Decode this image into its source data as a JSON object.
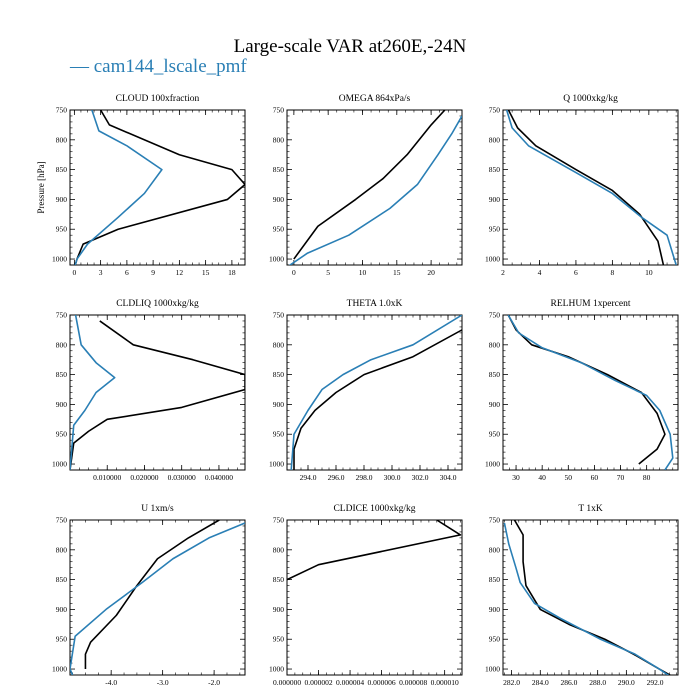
{
  "figure": {
    "title": "Large-scale VAR at260E,-24N",
    "legend_label": "cam144_lscale_pmf",
    "legend_prefix": "— "
  },
  "colors": {
    "series_a": "#000000",
    "series_b": "#2a7fb5"
  },
  "chart_data": [
    {
      "type": "line",
      "title": "CLOUD 100xfraction",
      "ylabel": "Pressure [hPa]",
      "xlim": [
        -0.5,
        19.5
      ],
      "xticks": [
        0,
        3,
        6,
        9,
        12,
        15,
        18
      ],
      "xtick_labels": [
        "0",
        "3",
        "6",
        "9",
        "12",
        "15",
        "18"
      ],
      "ylim": [
        1010,
        750
      ],
      "series": [
        {
          "color": "series_a",
          "points": [
            [
              3,
              750
            ],
            [
              4,
              775
            ],
            [
              12,
              825
            ],
            [
              18,
              850
            ],
            [
              19.5,
              875
            ],
            [
              17.5,
              900
            ],
            [
              5,
              950
            ],
            [
              1,
              975
            ],
            [
              0.3,
              1000
            ],
            [
              0,
              1015
            ]
          ]
        },
        {
          "color": "series_b",
          "points": [
            [
              2,
              750
            ],
            [
              2.8,
              785
            ],
            [
              6,
              810
            ],
            [
              10,
              850
            ],
            [
              8,
              890
            ],
            [
              5,
              930
            ],
            [
              1.5,
              975
            ],
            [
              0.3,
              1000
            ],
            [
              0,
              1015
            ]
          ]
        }
      ]
    },
    {
      "type": "line",
      "title": "OMEGA 864xPa/s",
      "ylabel": "",
      "xlim": [
        -1,
        24.5
      ],
      "xticks": [
        0,
        5,
        10,
        15,
        20
      ],
      "xtick_labels": [
        "0",
        "5",
        "10",
        "15",
        "20"
      ],
      "ylim": [
        1010,
        750
      ],
      "series": [
        {
          "color": "series_a",
          "points": [
            [
              22,
              750
            ],
            [
              20,
              775
            ],
            [
              16.5,
              825
            ],
            [
              13,
              865
            ],
            [
              9,
              900
            ],
            [
              3.5,
              945
            ],
            [
              0,
              1000
            ]
          ]
        },
        {
          "color": "series_b",
          "points": [
            [
              24.5,
              760
            ],
            [
              23,
              790
            ],
            [
              21,
              825
            ],
            [
              18,
              875
            ],
            [
              14,
              915
            ],
            [
              8,
              960
            ],
            [
              2,
              990
            ],
            [
              -0.8,
              1012
            ]
          ]
        }
      ]
    },
    {
      "type": "line",
      "title": "Q 1000xkg/kg",
      "ylabel": "",
      "xlim": [
        2,
        11.6
      ],
      "xticks": [
        2,
        4,
        6,
        8,
        10
      ],
      "xtick_labels": [
        "2",
        "4",
        "6",
        "8",
        "10"
      ],
      "ylim": [
        1010,
        750
      ],
      "series": [
        {
          "color": "series_a",
          "points": [
            [
              2.3,
              750
            ],
            [
              2.8,
              780
            ],
            [
              3.8,
              810
            ],
            [
              6,
              850
            ],
            [
              8,
              885
            ],
            [
              9.5,
              925
            ],
            [
              10.5,
              970
            ],
            [
              10.8,
              1010
            ]
          ]
        },
        {
          "color": "series_b",
          "points": [
            [
              2.2,
              750
            ],
            [
              2.5,
              780
            ],
            [
              3.4,
              810
            ],
            [
              6,
              855
            ],
            [
              8,
              890
            ],
            [
              9.6,
              930
            ],
            [
              11,
              960
            ],
            [
              11.5,
              1010
            ]
          ]
        }
      ]
    },
    {
      "type": "line",
      "title": "CLDLIQ 1000xkg/kg",
      "ylabel": "",
      "xlim": [
        0,
        0.047
      ],
      "xticks": [
        0.01,
        0.02,
        0.03,
        0.04
      ],
      "xtick_labels": [
        "0.010000",
        "0.020000",
        "0.030000",
        "0.040000"
      ],
      "ylim": [
        1010,
        750
      ],
      "series": [
        {
          "color": "series_a",
          "points": [
            [
              0.008,
              760
            ],
            [
              0.017,
              800
            ],
            [
              0.033,
              825
            ],
            [
              0.047,
              850
            ],
            [
              0.047,
              875
            ],
            [
              0.03,
              905
            ],
            [
              0.01,
              925
            ],
            [
              0.005,
              945
            ],
            [
              0.001,
              965
            ],
            [
              0,
              1010
            ]
          ]
        },
        {
          "color": "series_b",
          "points": [
            [
              0.0015,
              750
            ],
            [
              0.003,
              800
            ],
            [
              0.007,
              830
            ],
            [
              0.012,
              855
            ],
            [
              0.007,
              880
            ],
            [
              0.004,
              910
            ],
            [
              0.001,
              935
            ],
            [
              0,
              1010
            ]
          ]
        }
      ]
    },
    {
      "type": "line",
      "title": "THETA 1.0xK",
      "ylabel": "",
      "xlim": [
        292.5,
        305
      ],
      "xticks": [
        294,
        296,
        298,
        300,
        302,
        304
      ],
      "xtick_labels": [
        "294.0",
        "296.0",
        "298.0",
        "300.0",
        "302.0",
        "304.0"
      ],
      "ylim": [
        1010,
        750
      ],
      "series": [
        {
          "color": "series_a",
          "points": [
            [
              305,
              775
            ],
            [
              301.5,
              820
            ],
            [
              298,
              850
            ],
            [
              296,
              880
            ],
            [
              294.5,
              910
            ],
            [
              293.5,
              940
            ],
            [
              293,
              975
            ],
            [
              293,
              1010
            ]
          ]
        },
        {
          "color": "series_b",
          "points": [
            [
              305,
              750
            ],
            [
              301.5,
              800
            ],
            [
              298.5,
              825
            ],
            [
              296.5,
              850
            ],
            [
              295,
              875
            ],
            [
              294,
              910
            ],
            [
              293,
              950
            ],
            [
              292.8,
              1010
            ]
          ]
        }
      ]
    },
    {
      "type": "line",
      "title": "RELHUM 1xpercent",
      "ylabel": "",
      "xlim": [
        25,
        92
      ],
      "xticks": [
        30,
        40,
        50,
        60,
        70,
        80
      ],
      "xtick_labels": [
        "30",
        "40",
        "50",
        "60",
        "70",
        "80"
      ],
      "ylim": [
        1010,
        750
      ],
      "series": [
        {
          "color": "series_a",
          "points": [
            [
              27,
              750
            ],
            [
              30,
              775
            ],
            [
              36,
              800
            ],
            [
              50,
              820
            ],
            [
              65,
              850
            ],
            [
              78,
              880
            ],
            [
              84,
              915
            ],
            [
              87,
              950
            ],
            [
              84,
              975
            ],
            [
              77,
              1000
            ]
          ]
        },
        {
          "color": "series_b",
          "points": [
            [
              27,
              750
            ],
            [
              31,
              780
            ],
            [
              40,
              805
            ],
            [
              55,
              830
            ],
            [
              68,
              860
            ],
            [
              80,
              885
            ],
            [
              85,
              910
            ],
            [
              89,
              950
            ],
            [
              90,
              990
            ],
            [
              87,
              1010
            ]
          ]
        }
      ]
    },
    {
      "type": "line",
      "title": "U 1xm/s",
      "ylabel": "",
      "xlim": [
        -4.8,
        -1.4
      ],
      "xticks": [
        -4,
        -3,
        -2
      ],
      "xtick_labels": [
        "-4.0",
        "-3.0",
        "-2.0"
      ],
      "ylim": [
        1010,
        750
      ],
      "series": [
        {
          "color": "series_a",
          "points": [
            [
              -1.9,
              750
            ],
            [
              -2.5,
              780
            ],
            [
              -3.1,
              815
            ],
            [
              -3.5,
              860
            ],
            [
              -3.9,
              910
            ],
            [
              -4.4,
              955
            ],
            [
              -4.5,
              975
            ],
            [
              -4.5,
              1000
            ]
          ]
        },
        {
          "color": "series_b",
          "points": [
            [
              -1.4,
              755
            ],
            [
              -2.1,
              780
            ],
            [
              -2.8,
              815
            ],
            [
              -3.4,
              855
            ],
            [
              -4.1,
              900
            ],
            [
              -4.7,
              945
            ],
            [
              -4.8,
              1000
            ],
            [
              -4.75,
              1010
            ]
          ]
        }
      ]
    },
    {
      "type": "line",
      "title": "CLDICE 1000xkg/kg",
      "ylabel": "",
      "xlim": [
        0,
        1.11e-05
      ],
      "xticks": [
        0,
        2e-06,
        4e-06,
        6e-06,
        8e-06,
        1e-05
      ],
      "xtick_labels": [
        "0.000000",
        "0.000002",
        "0.000004",
        "0.000006",
        "0.000008",
        "0.000010"
      ],
      "ylim": [
        1010,
        750
      ],
      "series": [
        {
          "color": "series_a",
          "points": [
            [
              9.5e-06,
              750
            ],
            [
              1.1e-05,
              775
            ],
            [
              2e-06,
              825
            ],
            [
              0,
              850
            ]
          ]
        }
      ]
    },
    {
      "type": "line",
      "title": "T 1xK",
      "ylabel": "",
      "xlim": [
        281.4,
        293.6
      ],
      "xticks": [
        282,
        284,
        286,
        288,
        290,
        292
      ],
      "xtick_labels": [
        "282.0",
        "284.0",
        "286.0",
        "288.0",
        "290.0",
        "292.0"
      ],
      "ylim": [
        1010,
        750
      ],
      "series": [
        {
          "color": "series_a",
          "points": [
            [
              282.2,
              750
            ],
            [
              282.8,
              775
            ],
            [
              282.8,
              820
            ],
            [
              283,
              860
            ],
            [
              284,
              900
            ],
            [
              286,
              925
            ],
            [
              288.5,
              950
            ],
            [
              290.5,
              975
            ],
            [
              292.3,
              1000
            ],
            [
              293.4,
              1015
            ]
          ]
        },
        {
          "color": "series_b",
          "points": [
            [
              281.5,
              755
            ],
            [
              281.8,
              790
            ],
            [
              282.3,
              830
            ],
            [
              282.6,
              855
            ],
            [
              283.6,
              890
            ],
            [
              285.4,
              915
            ],
            [
              288.2,
              950
            ],
            [
              290.6,
              975
            ],
            [
              292.3,
              1000
            ],
            [
              293.2,
              1015
            ]
          ]
        }
      ]
    }
  ],
  "pressure_axis": {
    "ticks": [
      750,
      800,
      850,
      900,
      950,
      1000
    ],
    "labels": [
      "750",
      "800",
      "850",
      "900",
      "950",
      "1000"
    ]
  }
}
